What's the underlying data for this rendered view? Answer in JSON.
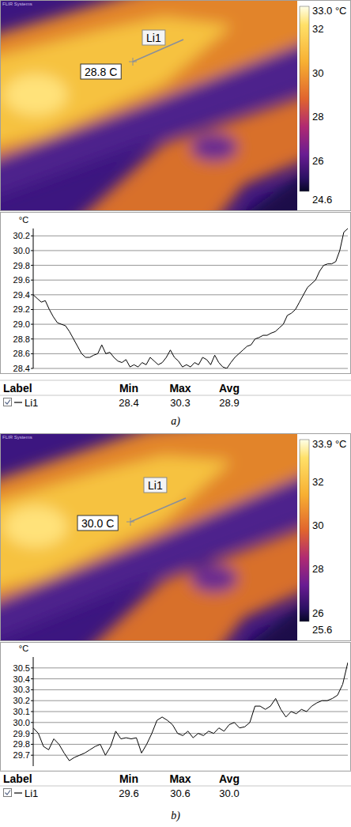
{
  "chart_data": [
    {
      "type": "line",
      "y_label": "°C",
      "color": "#000000",
      "grid": true,
      "tick_labels": "y",
      "ylim": [
        28.4,
        30.3
      ],
      "yticks": [
        28.4,
        28.6,
        28.8,
        {
          "value": 29,
          "label": "29.0"
        },
        29.2,
        29.4,
        29.6,
        29.8,
        {
          "value": 30,
          "label": "30.0"
        },
        30.2
      ],
      "values": [
        29.4,
        29.35,
        29.3,
        29.32,
        29.2,
        29.1,
        29.02,
        29.0,
        28.98,
        28.9,
        28.8,
        28.7,
        28.6,
        28.55,
        28.55,
        28.58,
        28.6,
        28.72,
        28.6,
        28.62,
        28.55,
        28.5,
        28.48,
        28.52,
        28.42,
        28.45,
        28.42,
        28.48,
        28.45,
        28.55,
        28.5,
        28.45,
        28.48,
        28.55,
        28.65,
        28.55,
        28.5,
        28.42,
        28.45,
        28.42,
        28.48,
        28.45,
        28.55,
        28.52,
        28.45,
        28.58,
        28.48,
        28.42,
        28.4,
        28.48,
        28.55,
        28.6,
        28.65,
        28.7,
        28.72,
        28.8,
        28.82,
        28.85,
        28.85,
        28.88,
        28.9,
        28.95,
        29.0,
        29.12,
        29.15,
        29.2,
        29.3,
        29.4,
        29.5,
        29.55,
        29.6,
        29.72,
        29.8,
        29.82,
        29.82,
        29.85,
        30.0,
        30.25,
        30.3
      ]
    },
    {
      "type": "line",
      "y_label": "°C",
      "color": "#000000",
      "grid": true,
      "tick_labels": "y",
      "ylim": [
        29.6,
        30.6
      ],
      "yticks": [
        29.7,
        29.8,
        29.9,
        {
          "value": 30,
          "label": "30.0"
        },
        30.1,
        30.2,
        30.3,
        30.4,
        30.5
      ],
      "values": [
        29.95,
        29.9,
        29.78,
        29.75,
        29.85,
        29.8,
        29.72,
        29.65,
        29.68,
        29.7,
        29.72,
        29.75,
        29.78,
        29.8,
        29.7,
        29.78,
        29.92,
        29.85,
        29.86,
        29.85,
        29.86,
        29.72,
        29.8,
        29.9,
        30.02,
        30.05,
        30.02,
        29.98,
        29.9,
        29.88,
        29.92,
        29.86,
        29.9,
        29.88,
        29.92,
        29.9,
        29.95,
        29.92,
        29.98,
        30.0,
        29.95,
        29.96,
        30.0,
        30.15,
        30.15,
        30.12,
        30.15,
        30.22,
        30.12,
        30.05,
        30.1,
        30.08,
        30.12,
        30.1,
        30.15,
        30.18,
        30.2,
        30.2,
        30.22,
        30.25,
        30.35,
        30.55
      ]
    }
  ],
  "panels": [
    {
      "caption": "a)",
      "image": {
        "brand": "FLIR Systems",
        "line_label": "Li1",
        "readout": "28.8 C",
        "colorbar_range": [
          24.6,
          33.0
        ],
        "colorbar_ticks": [
          24.6,
          26,
          28,
          30,
          32,
          {
            "value": 33,
            "label": "33.0 °C"
          }
        ]
      },
      "table": {
        "headers": [
          "Label",
          "Min",
          "Max",
          "Avg"
        ],
        "rows": [
          [
            "Li1",
            "28.4",
            "30.3",
            "28.9"
          ]
        ]
      }
    },
    {
      "caption": "b)",
      "image": {
        "brand": "FLIR Systems",
        "line_label": "Li1",
        "readout": "30.0 C",
        "colorbar_range": [
          25.6,
          33.9
        ],
        "colorbar_ticks": [
          25.6,
          26,
          28,
          30,
          32,
          {
            "value": 33.9,
            "label": "33.9 °C"
          }
        ]
      },
      "table": {
        "headers": [
          "Label",
          "Min",
          "Max",
          "Avg"
        ],
        "rows": [
          [
            "Li1",
            "29.6",
            "30.6",
            "30.0"
          ]
        ]
      }
    }
  ]
}
